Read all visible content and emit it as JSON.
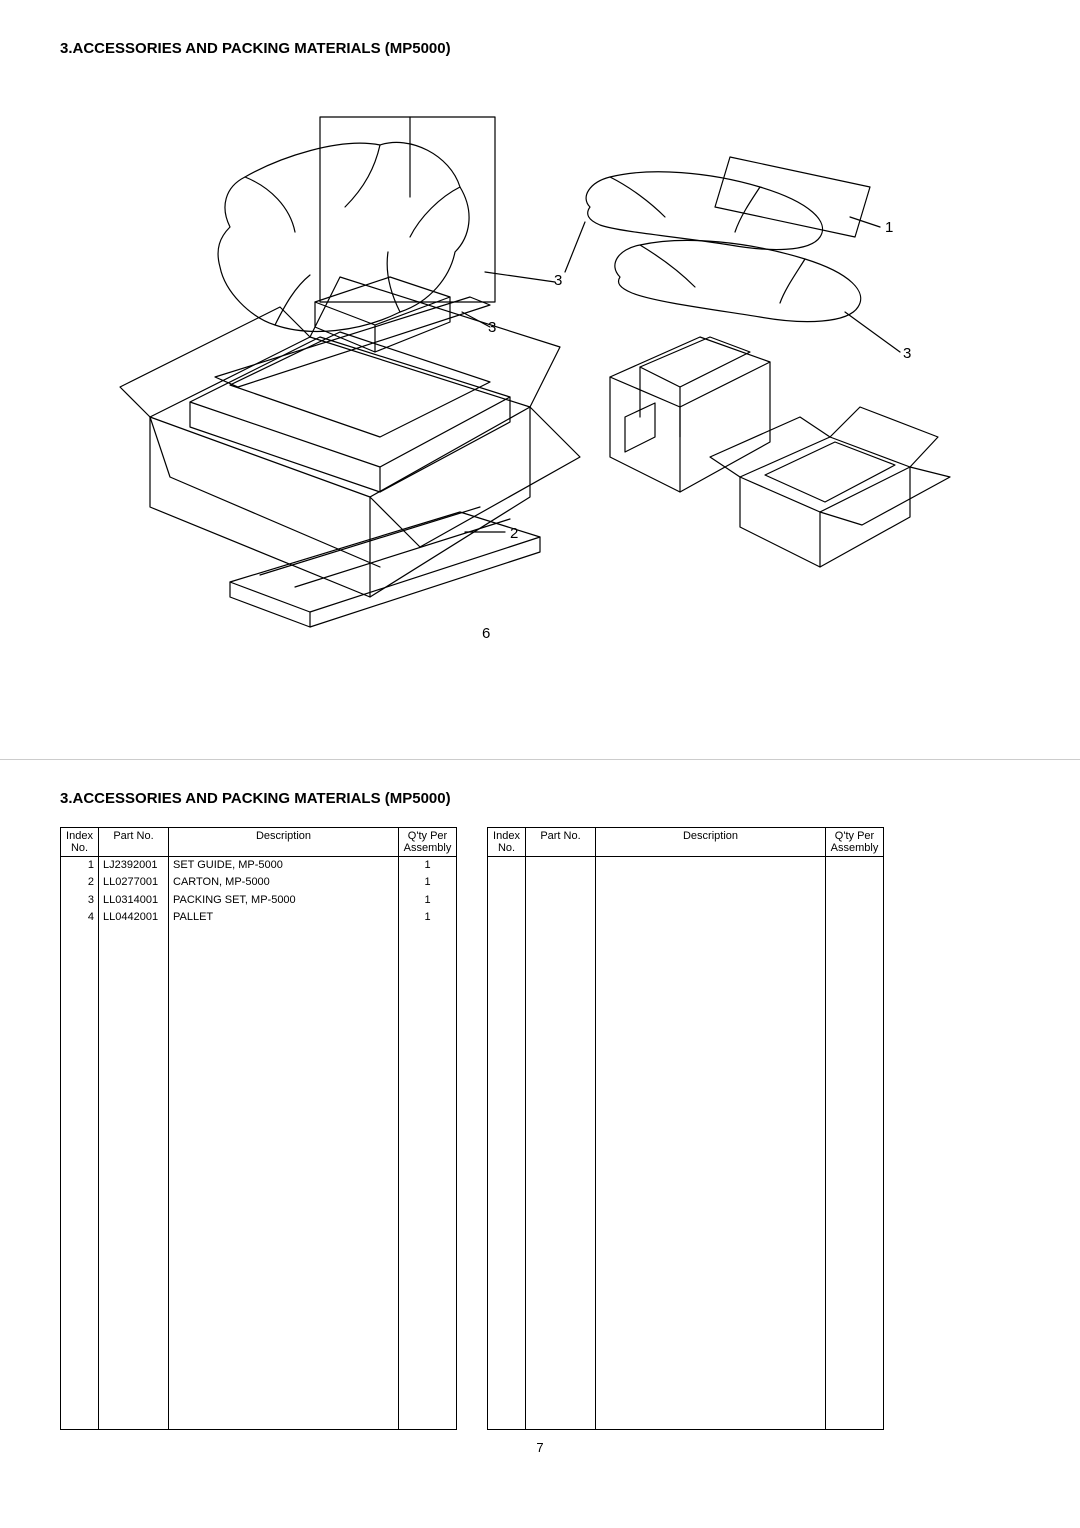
{
  "upper": {
    "title": "3.ACCESSORIES AND PACKING MATERIALS (MP5000)",
    "callouts": {
      "c1": "1",
      "c2": "2",
      "c3a": "3",
      "c3b": "3",
      "c3c": "3",
      "c6": "6"
    },
    "page_number": "6"
  },
  "lower": {
    "title": "3.ACCESSORIES AND PACKING MATERIALS (MP5000)",
    "table_left": {
      "headers": {
        "idx": "Index\nNo.",
        "part": "Part No.",
        "desc": "Description",
        "qty": "Q'ty Per\nAssembly"
      },
      "rows": [
        {
          "idx": "1",
          "part": "LJ2392001",
          "desc": "SET GUIDE, MP-5000",
          "qty": "1"
        },
        {
          "idx": "2",
          "part": "LL0277001",
          "desc": "CARTON, MP-5000",
          "qty": "1"
        },
        {
          "idx": "3",
          "part": "LL0314001",
          "desc": "PACKING SET, MP-5000",
          "qty": "1"
        },
        {
          "idx": "4",
          "part": "LL0442001",
          "desc": "PALLET",
          "qty": "1"
        }
      ]
    },
    "table_right": {
      "headers": {
        "idx": "Index\nNo.",
        "part": "Part No.",
        "desc": "Description",
        "qty": "Q'ty Per\nAssembly"
      },
      "rows": []
    },
    "page_number": "7"
  },
  "style": {
    "empty_rows": 36
  }
}
